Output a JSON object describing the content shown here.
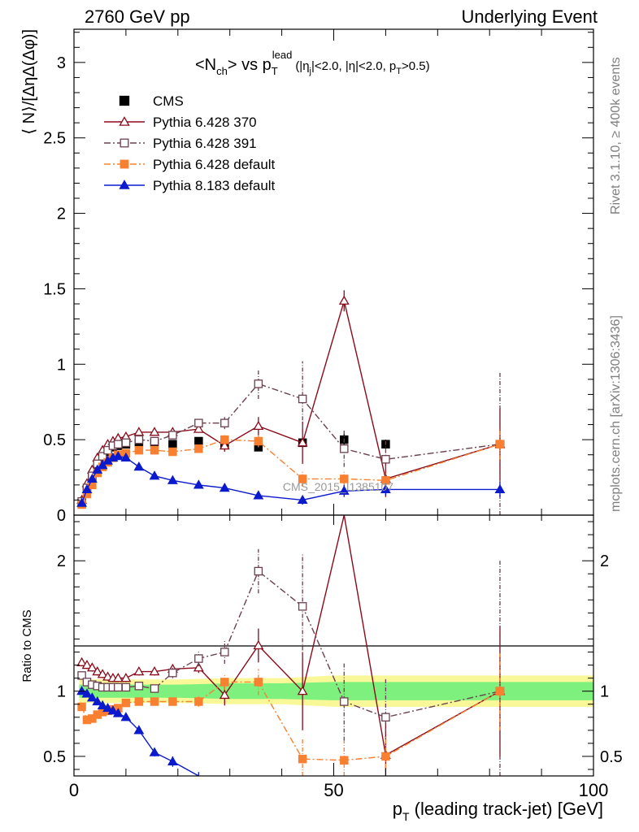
{
  "header": {
    "left": "2760 GeV pp",
    "right": "Underlying Event"
  },
  "side_labels": {
    "rivet": "Rivet 3.1.10, ≥ 400k events",
    "mcplots": "mcplots.cern.ch [arXiv:1306:3436]"
  },
  "watermark": "CMS_2015_I1385107",
  "plot_title": {
    "prefix": "<N",
    "prefix_sub": "ch",
    "mid": "> vs p",
    "mid_sub": "T",
    "mid_sup": "lead",
    "cond": "(|η",
    "cond_sub": "j",
    "cond2": "|<2.0, |η|<2.0, p",
    "cond2_sub": "T",
    "cond3": ">0.5)"
  },
  "colors": {
    "cms": "#000000",
    "p370": "#8b0a1a",
    "p391": "#6b4050",
    "p428": "#f98030",
    "p8": "#0a1acc",
    "band_inner": "#7ef07e",
    "band_outer": "#f8f898"
  },
  "chart_data": [
    {
      "type": "scatter",
      "panel": "main",
      "ylabel": "⟨ N⟩/[ΔηΔ(Δφ)]",
      "xlim": [
        0,
        100
      ],
      "ylim": [
        0,
        3.22
      ],
      "yticks": [
        0,
        0.5,
        1,
        1.5,
        2,
        2.5,
        3
      ],
      "ytick_labels": [
        "0",
        "0.5",
        "1",
        "1.5",
        "2",
        "2.5",
        "3"
      ],
      "legend_position": "top-left",
      "series": [
        {
          "name": "CMS",
          "key": "cms",
          "marker": "square-filled",
          "line": "none",
          "x": [
            1.5,
            2.5,
            3.5,
            4.5,
            5.5,
            6.5,
            7.5,
            8.5,
            10,
            12.5,
            15.5,
            19,
            24,
            29,
            35.5,
            44,
            52,
            60,
            82
          ],
          "y": [
            0.08,
            0.17,
            0.25,
            0.33,
            0.38,
            0.42,
            0.45,
            0.46,
            0.47,
            0.48,
            0.48,
            0.47,
            0.49,
            0.47,
            0.45,
            0.48,
            0.5,
            0.47,
            0.47
          ],
          "err": [
            0.01,
            0.02,
            0.02,
            0.02,
            0.02,
            0.02,
            0.02,
            0.02,
            0.02,
            0.02,
            0.02,
            0.02,
            0.02,
            0.02,
            0.02,
            0.03,
            0.04,
            0.03,
            0.04
          ]
        },
        {
          "name": "Pythia 6.428 370",
          "key": "p370",
          "marker": "triangle-open",
          "line": "solid",
          "x": [
            1.5,
            2.5,
            3.5,
            4.5,
            5.5,
            6.5,
            7.5,
            8.5,
            10,
            12.5,
            15.5,
            19,
            24,
            29,
            35.5,
            44,
            52,
            60,
            82
          ],
          "y": [
            0.1,
            0.21,
            0.3,
            0.38,
            0.43,
            0.47,
            0.49,
            0.51,
            0.52,
            0.55,
            0.55,
            0.55,
            0.57,
            0.46,
            0.59,
            0.48,
            1.42,
            0.24,
            0.47
          ],
          "err": [
            0.01,
            0.01,
            0.01,
            0.01,
            0.01,
            0.01,
            0.01,
            0.01,
            0.01,
            0.01,
            0.01,
            0.01,
            0.02,
            0.04,
            0.06,
            0.14,
            0.07,
            0.12,
            0.24
          ]
        },
        {
          "name": "Pythia 6.428 391",
          "key": "p391",
          "marker": "square-open",
          "line": "dashdot",
          "x": [
            1.5,
            2.5,
            3.5,
            4.5,
            5.5,
            6.5,
            7.5,
            8.5,
            10,
            12.5,
            15.5,
            19,
            24,
            29,
            35.5,
            44,
            52,
            60,
            82
          ],
          "y": [
            0.09,
            0.18,
            0.26,
            0.34,
            0.39,
            0.43,
            0.46,
            0.47,
            0.48,
            0.5,
            0.49,
            0.53,
            0.61,
            0.61,
            0.87,
            0.77,
            0.44,
            0.37,
            0.47
          ],
          "err": [
            0.01,
            0.01,
            0.01,
            0.01,
            0.01,
            0.01,
            0.01,
            0.01,
            0.01,
            0.01,
            0.01,
            0.02,
            0.02,
            0.04,
            0.1,
            0.25,
            0.12,
            0.12,
            0.48
          ]
        },
        {
          "name": "Pythia 6.428 default",
          "key": "p428",
          "marker": "square-filled",
          "line": "dashdot",
          "x": [
            1.5,
            2.5,
            3.5,
            4.5,
            5.5,
            6.5,
            7.5,
            8.5,
            10,
            12.5,
            15.5,
            19,
            24,
            29,
            35.5,
            44,
            52,
            60,
            82
          ],
          "y": [
            0.07,
            0.14,
            0.2,
            0.28,
            0.32,
            0.35,
            0.38,
            0.4,
            0.41,
            0.43,
            0.43,
            0.42,
            0.44,
            0.5,
            0.49,
            0.24,
            0.24,
            0.23,
            0.47
          ],
          "err": [
            0.01,
            0.01,
            0.01,
            0.01,
            0.01,
            0.01,
            0.01,
            0.01,
            0.01,
            0.01,
            0.01,
            0.01,
            0.02,
            0.03,
            0.04,
            0.05,
            0.05,
            0.05,
            0.1
          ]
        },
        {
          "name": "Pythia 8.183 default",
          "key": "p8",
          "marker": "triangle-filled",
          "line": "solid",
          "x": [
            1.5,
            2.5,
            3.5,
            4.5,
            5.5,
            6.5,
            7.5,
            8.5,
            10,
            12.5,
            15.5,
            19,
            24,
            29,
            35.5,
            44,
            52,
            60,
            82
          ],
          "y": [
            0.08,
            0.17,
            0.24,
            0.3,
            0.33,
            0.36,
            0.38,
            0.39,
            0.38,
            0.32,
            0.26,
            0.23,
            0.2,
            0.18,
            0.13,
            0.1,
            0.16,
            0.17,
            0.17
          ],
          "err": [
            0.01,
            0.01,
            0.01,
            0.01,
            0.01,
            0.01,
            0.01,
            0.01,
            0.01,
            0.01,
            0.01,
            0.01,
            0.01,
            0.02,
            0.02,
            0.03,
            0.04,
            0.04,
            0.05
          ]
        }
      ]
    },
    {
      "type": "line",
      "panel": "ratio",
      "ylabel": "Ratio to CMS",
      "xlabel": "p_T (leading track-jet) [GeV]",
      "xlim": [
        0,
        100
      ],
      "ylim": [
        0.35,
        2.35
      ],
      "xticks": [
        0,
        50,
        100
      ],
      "xtick_labels": [
        "0",
        "50",
        "100"
      ],
      "yticks": [
        0.5,
        1,
        2
      ],
      "ytick_labels": [
        "0.5",
        "1",
        "2"
      ],
      "band_x": [
        1,
        4,
        7,
        10,
        20,
        30,
        40,
        50,
        60,
        100
      ],
      "band_inner": [
        0.05,
        0.05,
        0.05,
        0.05,
        0.05,
        0.06,
        0.06,
        0.07,
        0.07,
        0.07
      ],
      "band_outer": [
        0.09,
        0.09,
        0.09,
        0.09,
        0.09,
        0.1,
        0.1,
        0.12,
        0.12,
        0.12
      ],
      "series": [
        {
          "name": "Pythia 6.428 370",
          "key": "p370",
          "marker": "triangle-open",
          "line": "solid",
          "x": [
            1.5,
            2.5,
            3.5,
            4.5,
            5.5,
            6.5,
            7.5,
            8.5,
            10,
            12.5,
            15.5,
            19,
            24,
            29,
            35.5,
            44,
            52,
            60,
            82
          ],
          "y": [
            1.22,
            1.2,
            1.18,
            1.15,
            1.13,
            1.11,
            1.1,
            1.1,
            1.1,
            1.15,
            1.15,
            1.17,
            1.18,
            0.97,
            1.35,
            1.0,
            2.85,
            0.51,
            1.0
          ],
          "err": [
            0.03,
            0.03,
            0.03,
            0.03,
            0.03,
            0.03,
            0.03,
            0.03,
            0.03,
            0.03,
            0.03,
            0.03,
            0.04,
            0.08,
            0.13,
            0.3,
            0.15,
            0.25,
            0.5
          ]
        },
        {
          "name": "Pythia 6.428 391",
          "key": "p391",
          "marker": "square-open",
          "line": "dashdot",
          "x": [
            1.5,
            2.5,
            3.5,
            4.5,
            5.5,
            6.5,
            7.5,
            8.5,
            10,
            12.5,
            15.5,
            19,
            24,
            29,
            35.5,
            44,
            52,
            60,
            82
          ],
          "y": [
            1.12,
            1.07,
            1.05,
            1.04,
            1.03,
            1.03,
            1.03,
            1.03,
            1.03,
            1.04,
            1.02,
            1.14,
            1.25,
            1.3,
            1.92,
            1.65,
            0.92,
            0.8,
            1.0
          ],
          "err": [
            0.02,
            0.02,
            0.02,
            0.02,
            0.02,
            0.02,
            0.02,
            0.02,
            0.02,
            0.02,
            0.02,
            0.04,
            0.06,
            0.09,
            0.17,
            0.4,
            0.3,
            0.3,
            1.0
          ]
        },
        {
          "name": "Pythia 6.428 default",
          "key": "p428",
          "marker": "square-filled",
          "line": "dashdot",
          "x": [
            1.5,
            2.5,
            3.5,
            4.5,
            5.5,
            6.5,
            7.5,
            8.5,
            10,
            12.5,
            15.5,
            19,
            24,
            29,
            35.5,
            44,
            52,
            60,
            82
          ],
          "y": [
            0.88,
            0.78,
            0.79,
            0.82,
            0.84,
            0.85,
            0.86,
            0.87,
            0.91,
            0.92,
            0.92,
            0.92,
            0.92,
            1.07,
            1.07,
            0.48,
            0.47,
            0.5,
            1.0
          ],
          "err": [
            0.02,
            0.02,
            0.02,
            0.02,
            0.02,
            0.02,
            0.02,
            0.02,
            0.02,
            0.02,
            0.02,
            0.03,
            0.04,
            0.06,
            0.1,
            0.15,
            0.15,
            0.15,
            0.3
          ]
        },
        {
          "name": "Pythia 8.183 default",
          "key": "p8",
          "marker": "triangle-filled",
          "line": "solid",
          "x": [
            1.5,
            2.5,
            3.5,
            4.5,
            5.5,
            6.5,
            7.5,
            8.5,
            10,
            12.5,
            15.5,
            19,
            24
          ],
          "y": [
            1.0,
            0.98,
            0.95,
            0.92,
            0.89,
            0.87,
            0.85,
            0.83,
            0.8,
            0.7,
            0.53,
            0.46,
            0.33
          ],
          "err": [
            0.02,
            0.02,
            0.02,
            0.02,
            0.02,
            0.02,
            0.02,
            0.02,
            0.02,
            0.02,
            0.03,
            0.04,
            0.05
          ]
        }
      ]
    }
  ]
}
